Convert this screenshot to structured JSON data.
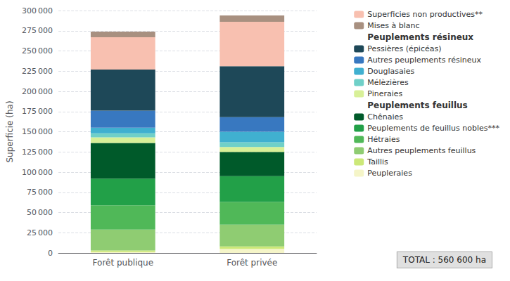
{
  "chart_data": {
    "type": "bar",
    "stacked": true,
    "categories": [
      "Forêt publique",
      "Forêt privée"
    ],
    "series": [
      {
        "name": "Peupleraies",
        "color": "#f5f5c8",
        "values": [
          1000,
          5000
        ]
      },
      {
        "name": "Taillis",
        "color": "#cce878",
        "values": [
          2000,
          3000
        ]
      },
      {
        "name": "Autres peuplements feuillus",
        "color": "#8fcc72",
        "values": [
          26000,
          27000
        ]
      },
      {
        "name": "Hétraies",
        "color": "#50b858",
        "values": [
          30000,
          28000
        ]
      },
      {
        "name": "Peuplements de feuillus nobles***",
        "color": "#22a048",
        "values": [
          33000,
          32000
        ]
      },
      {
        "name": "Chênaies",
        "color": "#005a2a",
        "values": [
          44000,
          30000
        ]
      },
      {
        "name": "Pineraies",
        "color": "#d8f098",
        "values": [
          7000,
          6000
        ]
      },
      {
        "name": "Mélèzières",
        "color": "#70d0c8",
        "values": [
          5000,
          6000
        ]
      },
      {
        "name": "Douglasaies",
        "color": "#40b0d0",
        "values": [
          7000,
          13000
        ]
      },
      {
        "name": "Autres peuplements résineux",
        "color": "#3878c0",
        "values": [
          21000,
          18000
        ]
      },
      {
        "name": "Pessières (épicéas)",
        "color": "#1e4858",
        "values": [
          51000,
          63000
        ]
      },
      {
        "name": "Superficies non productives**",
        "color": "#f8c0b0",
        "values": [
          40000,
          55000
        ]
      },
      {
        "name": "Mises à blanc",
        "color": "#a89080",
        "values": [
          7000,
          8000
        ]
      }
    ],
    "ylabel": "Superficie (ha)",
    "ylim": [
      0,
      300000
    ],
    "yticks": [
      0,
      {
        "value": 25000,
        "label": "25 000"
      },
      {
        "value": 50000,
        "label": "50 000"
      },
      {
        "value": 75000,
        "label": "75 000"
      },
      {
        "value": 100000,
        "label": "100 000"
      },
      {
        "value": 125000,
        "label": "125 000"
      },
      {
        "value": 150000,
        "label": "150 000"
      },
      {
        "value": 175000,
        "label": "175 000"
      },
      {
        "value": 200000,
        "label": "200 000"
      },
      {
        "value": 225000,
        "label": "225 000"
      },
      {
        "value": 250000,
        "label": "250 000"
      },
      {
        "value": 275000,
        "label": "275 000"
      },
      {
        "value": 300000,
        "label": "300 000"
      }
    ],
    "grid": true,
    "legend": "right",
    "legend_order": [
      "Superficies non productives**",
      "Mises à blanc",
      {
        "header": "Peuplements résineux"
      },
      "Pessières (épicéas)",
      "Autres peuplements résineux",
      "Douglasaies",
      "Mélèzières",
      "Pineraies",
      {
        "header": "Peuplements feuillus"
      },
      "Chênaies",
      "Peuplements de feuillus nobles***",
      "Hétraies",
      "Autres peuplements feuillus",
      "Taillis",
      "Peupleraies"
    ],
    "annotation": "TOTAL : 560 600 ha"
  }
}
